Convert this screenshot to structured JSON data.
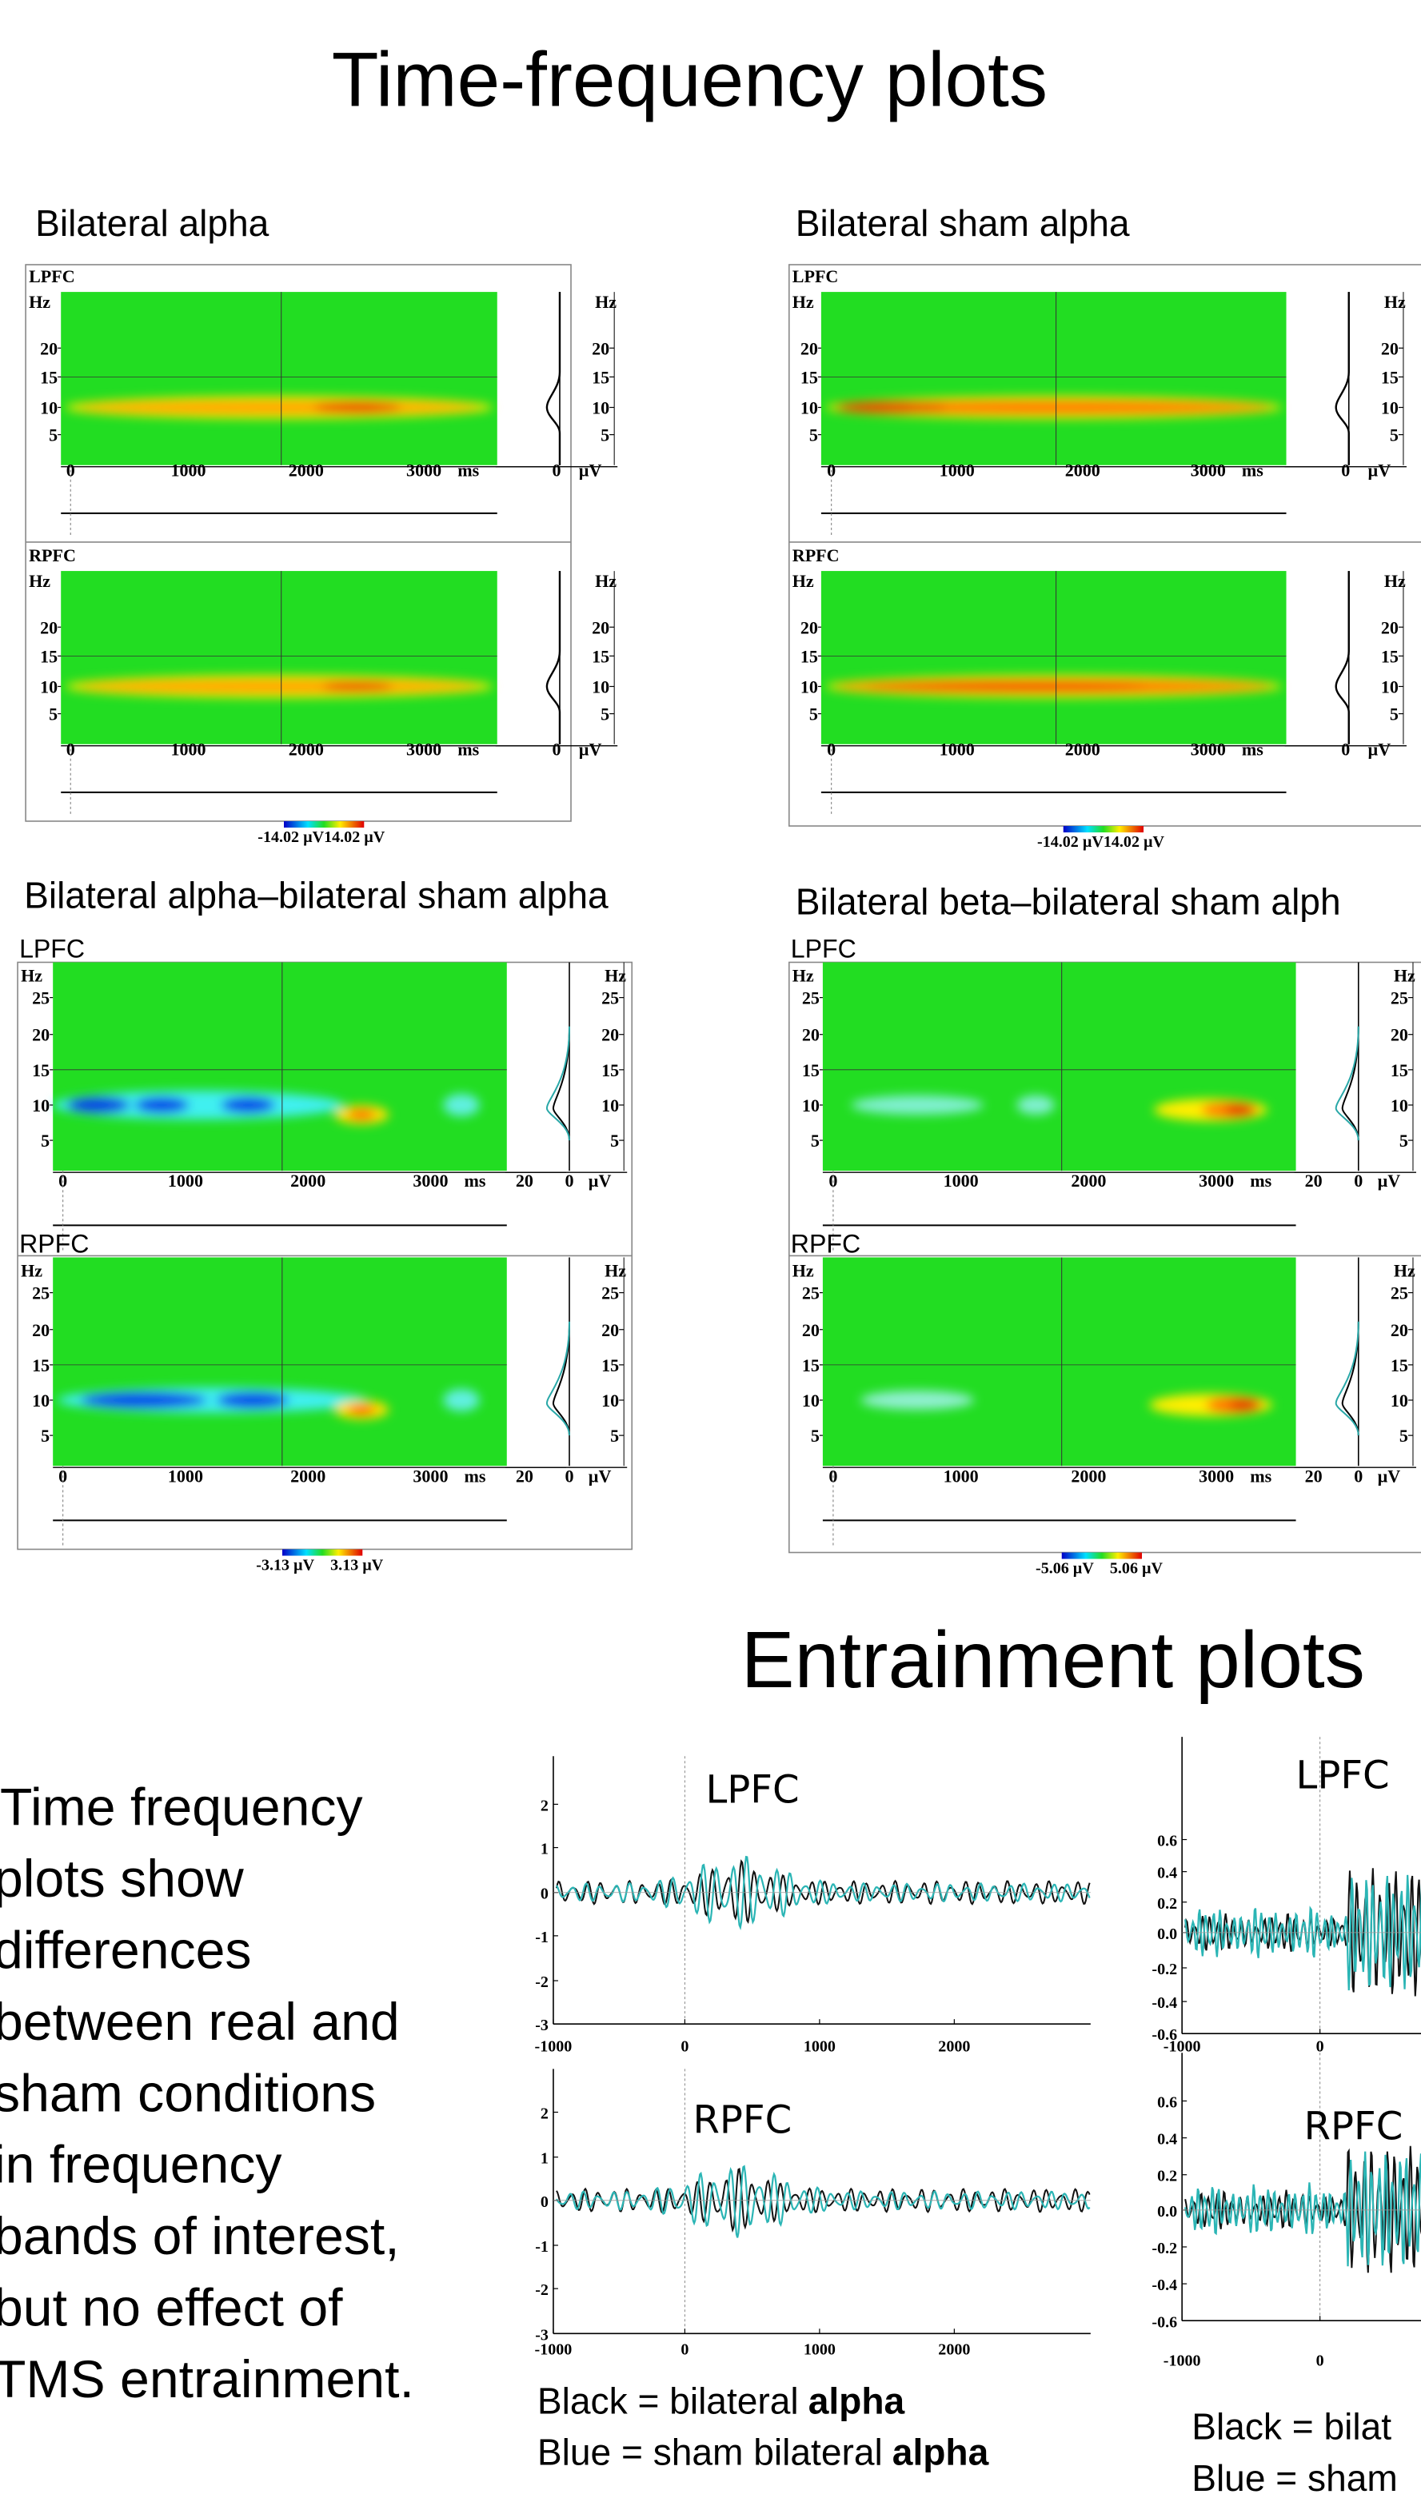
{
  "title": "Time-frequency plots",
  "panels": [
    {
      "title": "Bilateral alpha",
      "rows": [
        "LPFC",
        "RPFC"
      ],
      "freq_unit": "Hz",
      "freq_ticks": [
        "20",
        "15",
        "10",
        "5"
      ],
      "time_ticks": [
        "0",
        "1000",
        "2000",
        "3000"
      ],
      "time_unit": "ms",
      "amp_ticks": [
        "0"
      ],
      "amp_unit": "µV",
      "scale_labels": [
        "-14.02 µV",
        "14.02 µV"
      ]
    },
    {
      "title": "Bilateral sham alpha",
      "rows": [
        "LPFC",
        "RPFC"
      ],
      "freq_unit": "Hz",
      "freq_ticks": [
        "20",
        "15",
        "10",
        "5"
      ],
      "time_ticks": [
        "0",
        "1000",
        "2000",
        "3000"
      ],
      "time_unit": "ms",
      "amp_ticks": [
        "0"
      ],
      "amp_unit": "µV",
      "scale_labels": [
        "-14.02 µV",
        "14.02 µV"
      ]
    },
    {
      "title": "Bilateral alpha–bilateral sham alpha",
      "rows": [
        "LPFC",
        "RPFC"
      ],
      "freq_unit": "Hz",
      "freq_ticks": [
        "25",
        "20",
        "15",
        "10",
        "5"
      ],
      "time_ticks": [
        "0",
        "1000",
        "2000",
        "3000"
      ],
      "time_unit": "ms",
      "amp_ticks": [
        "20",
        "0"
      ],
      "amp_unit": "µV",
      "scale_labels": [
        "-3.13 µV",
        "3.13 µV"
      ]
    },
    {
      "title": "Bilateral beta–bilateral sham alph",
      "rows": [
        "LPFC",
        "RPFC"
      ],
      "freq_unit": "Hz",
      "freq_ticks": [
        "25",
        "20",
        "15",
        "10",
        "5"
      ],
      "time_ticks": [
        "0",
        "1000",
        "2000",
        "3000"
      ],
      "time_unit": "ms",
      "amp_ticks": [
        "20",
        "0"
      ],
      "amp_unit": "µV",
      "scale_labels": [
        "-5.06 µV",
        "5.06 µV"
      ]
    }
  ],
  "entrainment": {
    "title": "Entrainment plots",
    "description": [
      "Time frequency",
      "plots show",
      "differences",
      "between real and",
      "sham conditions",
      "in frequency",
      "bands of interest,",
      "but no effect of",
      "TMS entrainment."
    ],
    "plots": [
      {
        "rows": [
          "LPFC",
          "RPFC"
        ],
        "yticks": [
          "2",
          "1",
          "0",
          "-1",
          "-2",
          "-3"
        ],
        "xticks": [
          "-1000",
          "0",
          "1000",
          "2000"
        ],
        "legend": [
          {
            "text": "Black = bilateral",
            "bold": "alpha"
          },
          {
            "text": "Blue = sham bilateral",
            "bold": "alpha"
          }
        ]
      },
      {
        "rows": [
          "LPFC",
          "RPFC"
        ],
        "yticks": [
          "0.6",
          "0.4",
          "0.2",
          "0.0",
          "-0.2",
          "-0.4",
          "-0.6"
        ],
        "xticks": [
          "-1000",
          "0"
        ],
        "legend": [
          {
            "text": "Black = bilat"
          },
          {
            "text": "Blue = sham"
          }
        ]
      }
    ]
  }
}
